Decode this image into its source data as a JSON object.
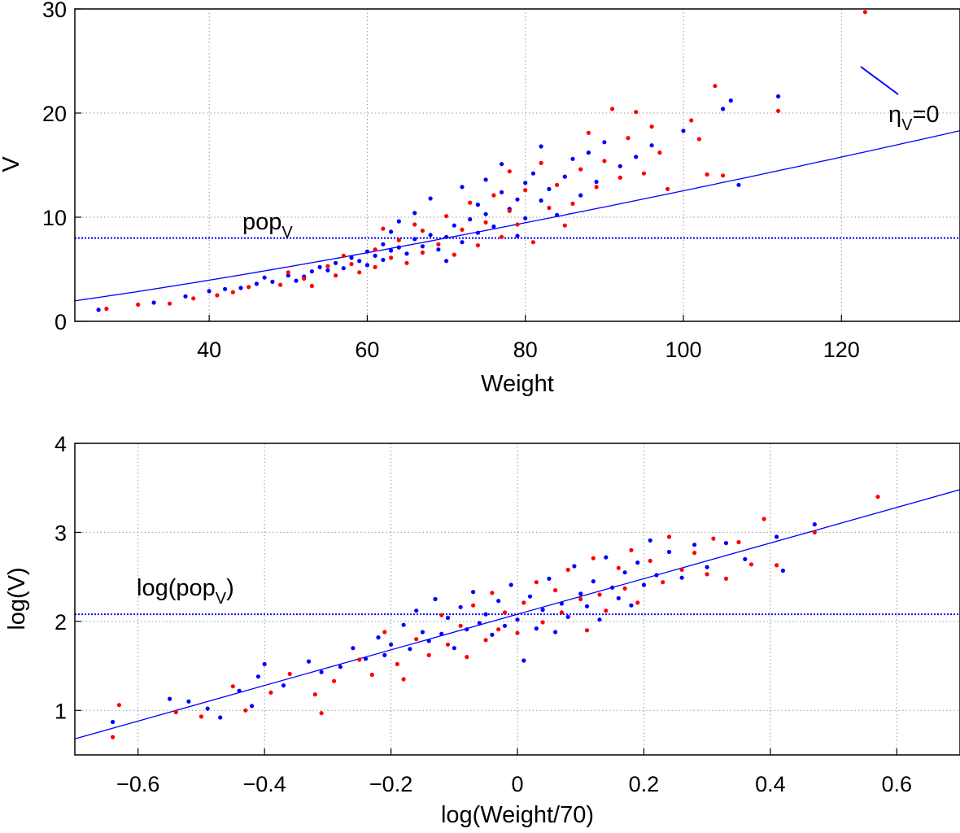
{
  "chart_data": [
    {
      "type": "scatter",
      "xlabel": "Weight",
      "ylabel": "V",
      "xlim": [
        23,
        135
      ],
      "ylim": [
        0,
        30
      ],
      "xticks": [
        "40",
        "60",
        "80",
        "100",
        "120"
      ],
      "yticks": [
        "0",
        "10",
        "20",
        "30"
      ],
      "grid": true,
      "series_colors": {
        "group1": "#0000ff",
        "group2": "#ff0000",
        "curve": "#0000ff"
      },
      "ref_line": {
        "y": 8.0,
        "label_main": "pop",
        "label_sub": "V",
        "style": "dotted"
      },
      "model_curve": {
        "formula": "V = 8 * (Weight/70)^1.26",
        "label_main": "η",
        "label_sub": "V",
        "label_tail": "=0"
      },
      "series": [
        {
          "color": "#0000ff",
          "points": [
            [
              26,
              1.1
            ],
            [
              33,
              1.8
            ],
            [
              37,
              2.4
            ],
            [
              40,
              2.9
            ],
            [
              42,
              3.1
            ],
            [
              44,
              3.2
            ],
            [
              46,
              3.6
            ],
            [
              47,
              4.2
            ],
            [
              48,
              3.8
            ],
            [
              50,
              4.4
            ],
            [
              51,
              3.9
            ],
            [
              52,
              4.3
            ],
            [
              53,
              4.8
            ],
            [
              54,
              5.2
            ],
            [
              55,
              4.9
            ],
            [
              56,
              5.6
            ],
            [
              57,
              5.1
            ],
            [
              58,
              6.1
            ],
            [
              59,
              5.8
            ],
            [
              60,
              5.4
            ],
            [
              60,
              6.7
            ],
            [
              61,
              6.3
            ],
            [
              62,
              5.9
            ],
            [
              62,
              7.4
            ],
            [
              63,
              6.8
            ],
            [
              63,
              8.6
            ],
            [
              64,
              7.1
            ],
            [
              64,
              9.6
            ],
            [
              65,
              6.5
            ],
            [
              66,
              7.9
            ],
            [
              66,
              10.4
            ],
            [
              67,
              7.2
            ],
            [
              68,
              8.3
            ],
            [
              68,
              11.8
            ],
            [
              69,
              6.9
            ],
            [
              70,
              8.1
            ],
            [
              70,
              5.8
            ],
            [
              71,
              9.2
            ],
            [
              72,
              7.6
            ],
            [
              72,
              12.9
            ],
            [
              73,
              9.8
            ],
            [
              74,
              8.5
            ],
            [
              74,
              11.2
            ],
            [
              75,
              10.3
            ],
            [
              75,
              13.6
            ],
            [
              76,
              9.1
            ],
            [
              77,
              12.4
            ],
            [
              77,
              15.1
            ],
            [
              78,
              10.8
            ],
            [
              79,
              11.7
            ],
            [
              79,
              8.2
            ],
            [
              80,
              13.3
            ],
            [
              80,
              9.9
            ],
            [
              81,
              14.2
            ],
            [
              82,
              11.6
            ],
            [
              82,
              16.8
            ],
            [
              83,
              12.7
            ],
            [
              84,
              10.2
            ],
            [
              85,
              13.9
            ],
            [
              86,
              15.6
            ],
            [
              87,
              12.1
            ],
            [
              88,
              16.2
            ],
            [
              89,
              13.4
            ],
            [
              90,
              17.2
            ],
            [
              92,
              14.9
            ],
            [
              94,
              15.8
            ],
            [
              96,
              16.9
            ],
            [
              100,
              18.3
            ],
            [
              105,
              20.4
            ],
            [
              106,
              21.2
            ],
            [
              107,
              13.1
            ],
            [
              112,
              21.6
            ]
          ]
        },
        {
          "color": "#ff0000",
          "points": [
            [
              27,
              1.2
            ],
            [
              31,
              1.6
            ],
            [
              35,
              1.7
            ],
            [
              38,
              2.2
            ],
            [
              41,
              2.5
            ],
            [
              43,
              2.8
            ],
            [
              45,
              3.3
            ],
            [
              49,
              3.5
            ],
            [
              50,
              4.7
            ],
            [
              52,
              4.1
            ],
            [
              53,
              3.4
            ],
            [
              55,
              5.3
            ],
            [
              56,
              4.4
            ],
            [
              57,
              6.3
            ],
            [
              58,
              5.5
            ],
            [
              59,
              4.7
            ],
            [
              61,
              6.9
            ],
            [
              61,
              5.2
            ],
            [
              62,
              8.9
            ],
            [
              63,
              6.1
            ],
            [
              64,
              7.8
            ],
            [
              65,
              5.6
            ],
            [
              66,
              9.3
            ],
            [
              67,
              6.6
            ],
            [
              67,
              8.7
            ],
            [
              69,
              7.4
            ],
            [
              70,
              10.1
            ],
            [
              71,
              6.4
            ],
            [
              72,
              8.8
            ],
            [
              73,
              11.4
            ],
            [
              74,
              7.3
            ],
            [
              75,
              9.5
            ],
            [
              76,
              12.1
            ],
            [
              77,
              8.1
            ],
            [
              78,
              10.6
            ],
            [
              78,
              14.4
            ],
            [
              79,
              9.3
            ],
            [
              80,
              12.6
            ],
            [
              81,
              7.6
            ],
            [
              82,
              15.2
            ],
            [
              83,
              10.9
            ],
            [
              84,
              13.1
            ],
            [
              85,
              9.2
            ],
            [
              86,
              11.3
            ],
            [
              87,
              14.6
            ],
            [
              88,
              18.1
            ],
            [
              89,
              12.9
            ],
            [
              90,
              15.4
            ],
            [
              91,
              20.4
            ],
            [
              92,
              13.8
            ],
            [
              93,
              17.6
            ],
            [
              94,
              20.1
            ],
            [
              95,
              14.2
            ],
            [
              96,
              18.7
            ],
            [
              97,
              16.2
            ],
            [
              98,
              12.7
            ],
            [
              101,
              19.3
            ],
            [
              102,
              17.5
            ],
            [
              103,
              14.1
            ],
            [
              104,
              22.6
            ],
            [
              105,
              14.0
            ],
            [
              112,
              20.2
            ],
            [
              123,
              29.7
            ]
          ]
        }
      ]
    },
    {
      "type": "scatter",
      "xlabel": "log(Weight/70)",
      "ylabel": "log(V)",
      "xlim": [
        -0.7,
        0.7
      ],
      "ylim": [
        0.5,
        4.0
      ],
      "xticks": [
        "-0.6",
        "-0.4",
        "-0.2",
        "0",
        "0.2",
        "0.4",
        "0.6"
      ],
      "yticks": [
        "1",
        "2",
        "3",
        "4"
      ],
      "grid": true,
      "series_colors": {
        "group1": "#0000ff",
        "group2": "#ff0000",
        "line": "#0000ff"
      },
      "ref_line": {
        "y": 2.08,
        "label_main": "log(pop",
        "label_sub": "V",
        "label_tail": ")",
        "style": "dotted"
      },
      "model_line": {
        "intercept": 2.08,
        "slope": 2.0
      },
      "series": [
        {
          "color": "#0000ff",
          "points": [
            [
              -0.64,
              0.87
            ],
            [
              -0.55,
              1.13
            ],
            [
              -0.52,
              1.1
            ],
            [
              -0.49,
              1.02
            ],
            [
              -0.47,
              0.92
            ],
            [
              -0.44,
              1.22
            ],
            [
              -0.42,
              1.05
            ],
            [
              -0.41,
              1.38
            ],
            [
              -0.4,
              1.52
            ],
            [
              -0.37,
              1.28
            ],
            [
              -0.33,
              1.55
            ],
            [
              -0.31,
              1.43
            ],
            [
              -0.28,
              1.49
            ],
            [
              -0.26,
              1.7
            ],
            [
              -0.24,
              1.58
            ],
            [
              -0.22,
              1.82
            ],
            [
              -0.21,
              1.62
            ],
            [
              -0.2,
              1.74
            ],
            [
              -0.18,
              1.96
            ],
            [
              -0.17,
              1.69
            ],
            [
              -0.16,
              2.12
            ],
            [
              -0.15,
              1.88
            ],
            [
              -0.14,
              1.78
            ],
            [
              -0.13,
              2.25
            ],
            [
              -0.12,
              1.86
            ],
            [
              -0.11,
              2.04
            ],
            [
              -0.1,
              1.7
            ],
            [
              -0.09,
              2.16
            ],
            [
              -0.08,
              1.91
            ],
            [
              -0.07,
              2.33
            ],
            [
              -0.06,
              1.98
            ],
            [
              -0.05,
              2.08
            ],
            [
              -0.04,
              1.85
            ],
            [
              -0.03,
              2.23
            ],
            [
              -0.02,
              1.95
            ],
            [
              -0.01,
              2.41
            ],
            [
              0.0,
              2.02
            ],
            [
              0.01,
              1.56
            ],
            [
              0.02,
              2.28
            ],
            [
              0.03,
              1.92
            ],
            [
              0.04,
              2.13
            ],
            [
              0.05,
              2.48
            ],
            [
              0.06,
              1.88
            ],
            [
              0.07,
              2.2
            ],
            [
              0.08,
              2.05
            ],
            [
              0.09,
              2.62
            ],
            [
              0.1,
              2.31
            ],
            [
              0.11,
              2.17
            ],
            [
              0.12,
              2.45
            ],
            [
              0.13,
              2.02
            ],
            [
              0.14,
              2.72
            ],
            [
              0.15,
              2.38
            ],
            [
              0.16,
              2.26
            ],
            [
              0.17,
              2.55
            ],
            [
              0.18,
              2.18
            ],
            [
              0.19,
              2.66
            ],
            [
              0.2,
              2.41
            ],
            [
              0.21,
              2.91
            ],
            [
              0.22,
              2.52
            ],
            [
              0.24,
              2.78
            ],
            [
              0.26,
              2.49
            ],
            [
              0.28,
              2.86
            ],
            [
              0.3,
              2.61
            ],
            [
              0.33,
              2.88
            ],
            [
              0.36,
              2.7
            ],
            [
              0.41,
              2.95
            ],
            [
              0.42,
              2.57
            ],
            [
              0.47,
              3.09
            ]
          ]
        },
        {
          "color": "#ff0000",
          "points": [
            [
              -0.64,
              0.7
            ],
            [
              -0.63,
              1.06
            ],
            [
              -0.54,
              0.98
            ],
            [
              -0.5,
              0.93
            ],
            [
              -0.45,
              1.27
            ],
            [
              -0.43,
              1.0
            ],
            [
              -0.39,
              1.2
            ],
            [
              -0.36,
              1.41
            ],
            [
              -0.32,
              1.18
            ],
            [
              -0.31,
              0.97
            ],
            [
              -0.29,
              1.33
            ],
            [
              -0.25,
              1.57
            ],
            [
              -0.23,
              1.4
            ],
            [
              -0.21,
              1.88
            ],
            [
              -0.19,
              1.52
            ],
            [
              -0.18,
              1.35
            ],
            [
              -0.16,
              1.8
            ],
            [
              -0.14,
              1.62
            ],
            [
              -0.12,
              2.07
            ],
            [
              -0.11,
              1.74
            ],
            [
              -0.09,
              1.95
            ],
            [
              -0.08,
              1.6
            ],
            [
              -0.07,
              2.18
            ],
            [
              -0.05,
              1.79
            ],
            [
              -0.04,
              2.32
            ],
            [
              -0.03,
              1.91
            ],
            [
              -0.02,
              2.1
            ],
            [
              0.0,
              1.87
            ],
            [
              0.01,
              2.21
            ],
            [
              0.03,
              2.44
            ],
            [
              0.04,
              1.99
            ],
            [
              0.06,
              2.35
            ],
            [
              0.07,
              2.1
            ],
            [
              0.08,
              2.58
            ],
            [
              0.1,
              2.25
            ],
            [
              0.11,
              1.9
            ],
            [
              0.12,
              2.71
            ],
            [
              0.13,
              2.3
            ],
            [
              0.14,
              2.12
            ],
            [
              0.16,
              2.6
            ],
            [
              0.17,
              2.37
            ],
            [
              0.18,
              2.8
            ],
            [
              0.19,
              2.21
            ],
            [
              0.21,
              2.68
            ],
            [
              0.23,
              2.44
            ],
            [
              0.24,
              2.95
            ],
            [
              0.26,
              2.58
            ],
            [
              0.28,
              2.77
            ],
            [
              0.3,
              2.53
            ],
            [
              0.31,
              2.93
            ],
            [
              0.33,
              2.48
            ],
            [
              0.35,
              2.89
            ],
            [
              0.37,
              2.64
            ],
            [
              0.39,
              3.15
            ],
            [
              0.41,
              2.63
            ],
            [
              0.47,
              3.0
            ],
            [
              0.57,
              3.4
            ]
          ]
        }
      ]
    }
  ]
}
